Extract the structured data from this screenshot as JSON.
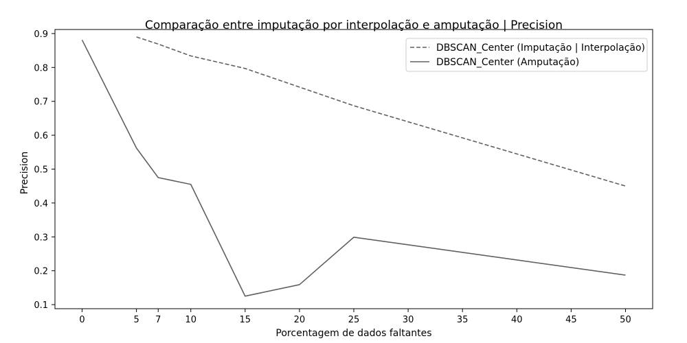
{
  "chart_data": {
    "type": "line",
    "title": "Comparação entre imputação por interpolação e amputação | Precision",
    "xlabel": "Porcentagem de dados faltantes",
    "ylabel": "Precision",
    "xlim": [
      -2.5,
      52.5
    ],
    "ylim": [
      0.088,
      0.912
    ],
    "xticks": [
      0,
      5,
      7,
      10,
      15,
      20,
      25,
      30,
      35,
      40,
      45,
      50
    ],
    "yticks": [
      0.1,
      0.2,
      0.3,
      0.4,
      0.5,
      0.6,
      0.7,
      0.8,
      0.9
    ],
    "grid": false,
    "legend_position": "top-right",
    "series": [
      {
        "name": "DBSCAN_Center (Imputação | Interpolação)",
        "style": "dashed",
        "color": "#606060",
        "x": [
          5,
          7,
          10,
          15,
          20,
          25,
          50
        ],
        "y": [
          0.89,
          0.869,
          0.834,
          0.797,
          0.742,
          0.687,
          0.45
        ]
      },
      {
        "name": "DBSCAN_Center (Amputação)",
        "style": "solid",
        "color": "#606060",
        "x": [
          0,
          5,
          7,
          10,
          15,
          20,
          25,
          50
        ],
        "y": [
          0.881,
          0.562,
          0.475,
          0.455,
          0.125,
          0.159,
          0.299,
          0.187
        ]
      }
    ]
  }
}
